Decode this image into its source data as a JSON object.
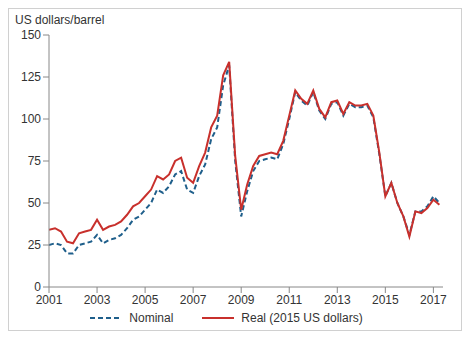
{
  "chart_data": {
    "type": "line",
    "y_label": "US dollars/barrel",
    "x": [
      2001,
      2001.25,
      2001.5,
      2001.75,
      2002,
      2002.25,
      2002.5,
      2002.75,
      2003,
      2003.25,
      2003.5,
      2003.75,
      2004,
      2004.25,
      2004.5,
      2004.75,
      2005,
      2005.25,
      2005.5,
      2005.75,
      2006,
      2006.25,
      2006.5,
      2006.75,
      2007,
      2007.25,
      2007.5,
      2007.75,
      2008,
      2008.25,
      2008.5,
      2008.75,
      2009,
      2009.25,
      2009.5,
      2009.75,
      2010,
      2010.25,
      2010.5,
      2010.75,
      2011,
      2011.25,
      2011.5,
      2011.75,
      2012,
      2012.25,
      2012.5,
      2012.75,
      2013,
      2013.25,
      2013.5,
      2013.75,
      2014,
      2014.25,
      2014.5,
      2014.75,
      2015,
      2015.25,
      2015.5,
      2015.75,
      2016,
      2016.25,
      2016.5,
      2016.75,
      2017,
      2017.25
    ],
    "series": [
      {
        "name": "Nominal",
        "color": "#1f5f8b",
        "line_style": "dashed",
        "values": [
          25,
          26,
          25,
          20,
          20,
          25,
          26,
          27,
          31,
          26,
          28,
          29,
          31,
          35,
          40,
          42,
          46,
          50,
          58,
          56,
          60,
          67,
          69,
          58,
          56,
          66,
          73,
          88,
          95,
          120,
          132,
          75,
          42,
          57,
          69,
          75,
          76,
          77,
          76,
          85,
          100,
          116,
          111,
          108,
          116,
          105,
          100,
          109,
          110,
          102,
          109,
          107,
          107,
          108,
          101,
          79,
          54,
          62,
          50,
          42,
          31,
          45,
          45,
          48,
          54,
          50
        ]
      },
      {
        "name": "Real (2015 US dollars)",
        "color": "#c8302c",
        "line_style": "solid",
        "values": [
          34,
          35,
          33,
          27,
          26,
          32,
          33,
          34,
          40,
          34,
          36,
          37,
          39,
          43,
          48,
          50,
          54,
          58,
          66,
          64,
          67,
          75,
          77,
          65,
          62,
          72,
          80,
          95,
          102,
          126,
          134,
          78,
          46,
          61,
          72,
          78,
          79,
          80,
          79,
          87,
          102,
          117,
          112,
          109,
          117,
          106,
          101,
          110,
          111,
          103,
          110,
          108,
          108,
          109,
          102,
          80,
          54,
          62,
          50,
          42,
          30,
          45,
          44,
          47,
          52,
          49
        ]
      }
    ],
    "xlim": [
      2001,
      2017.4
    ],
    "xticks": [
      2001,
      2003,
      2005,
      2007,
      2009,
      2011,
      2013,
      2015,
      2017
    ],
    "ylim": [
      0,
      150
    ],
    "yticks": [
      0,
      25,
      50,
      75,
      100,
      125,
      150
    ],
    "grid": false,
    "legend": "bottom"
  }
}
